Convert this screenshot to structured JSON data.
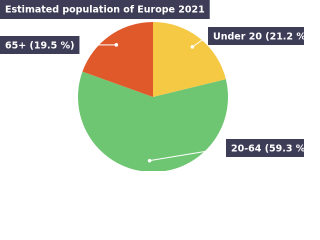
{
  "chart_data": {
    "type": "pie",
    "title": "Estimated population of Europe 2021",
    "categories": [
      "Under 20",
      "20-64",
      "65+"
    ],
    "values": [
      21.2,
      59.3,
      19.5
    ],
    "value_labels": [
      "(21.2 %)",
      "(59.3 %)",
      "(19.5 %)"
    ],
    "colors": [
      "#f6c945",
      "#6fc672",
      "#e0592b"
    ]
  }
}
